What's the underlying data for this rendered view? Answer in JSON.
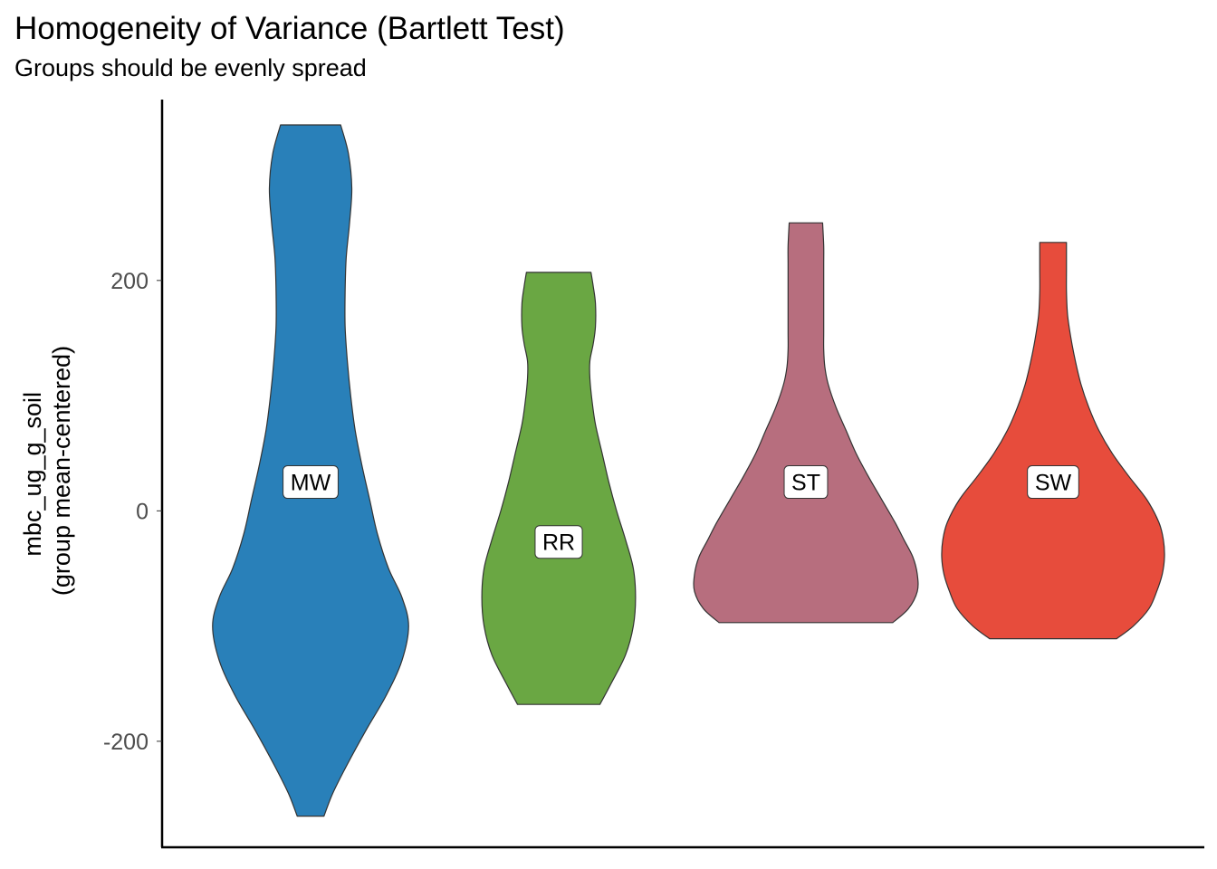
{
  "chart_data": {
    "type": "violin",
    "title": "Homogeneity of Variance (Bartlett Test)",
    "subtitle": "Groups should be evenly spread",
    "xlabel": "",
    "ylabel": [
      "mbc_ug_g_soil",
      "(group mean-centered)"
    ],
    "ylim": [
      -292,
      357
    ],
    "yticks": [
      -200,
      0,
      200
    ],
    "ytick_labels": [
      "-200",
      "0",
      "200"
    ],
    "grid": false,
    "legend": "none",
    "categories": [
      "MW",
      "RR",
      "ST",
      "SW"
    ],
    "groups": [
      {
        "name": "MW",
        "color": "#2980b9",
        "label_y": 25,
        "profile": [
          [
            -265,
            0.12
          ],
          [
            -245,
            0.2
          ],
          [
            -220,
            0.33
          ],
          [
            -190,
            0.5
          ],
          [
            -160,
            0.68
          ],
          [
            -130,
            0.82
          ],
          [
            -100,
            0.88
          ],
          [
            -75,
            0.82
          ],
          [
            -50,
            0.7
          ],
          [
            -20,
            0.6
          ],
          [
            10,
            0.53
          ],
          [
            40,
            0.46
          ],
          [
            70,
            0.4
          ],
          [
            100,
            0.36
          ],
          [
            130,
            0.33
          ],
          [
            160,
            0.31
          ],
          [
            190,
            0.31
          ],
          [
            220,
            0.32
          ],
          [
            250,
            0.35
          ],
          [
            280,
            0.37
          ],
          [
            310,
            0.34
          ],
          [
            335,
            0.27
          ]
        ]
      },
      {
        "name": "RR",
        "color": "#6aa743",
        "label_y": -27,
        "profile": [
          [
            -168,
            0.37
          ],
          [
            -150,
            0.47
          ],
          [
            -125,
            0.6
          ],
          [
            -100,
            0.67
          ],
          [
            -75,
            0.69
          ],
          [
            -50,
            0.67
          ],
          [
            -25,
            0.6
          ],
          [
            0,
            0.52
          ],
          [
            25,
            0.45
          ],
          [
            50,
            0.39
          ],
          [
            75,
            0.33
          ],
          [
            95,
            0.3
          ],
          [
            115,
            0.28
          ],
          [
            130,
            0.28
          ],
          [
            145,
            0.31
          ],
          [
            160,
            0.33
          ],
          [
            180,
            0.33
          ],
          [
            195,
            0.31
          ],
          [
            207,
            0.29
          ]
        ]
      },
      {
        "name": "ST",
        "color": "#b76e7e",
        "label_y": 25,
        "profile": [
          [
            -97,
            0.78
          ],
          [
            -85,
            0.92
          ],
          [
            -70,
            1.0
          ],
          [
            -55,
            1.0
          ],
          [
            -40,
            0.96
          ],
          [
            -25,
            0.88
          ],
          [
            -10,
            0.8
          ],
          [
            10,
            0.68
          ],
          [
            30,
            0.56
          ],
          [
            50,
            0.45
          ],
          [
            70,
            0.36
          ],
          [
            90,
            0.27
          ],
          [
            110,
            0.2
          ],
          [
            125,
            0.17
          ],
          [
            140,
            0.16
          ],
          [
            155,
            0.16
          ],
          [
            170,
            0.16
          ],
          [
            185,
            0.16
          ],
          [
            200,
            0.16
          ],
          [
            215,
            0.16
          ],
          [
            230,
            0.16
          ],
          [
            250,
            0.15
          ]
        ]
      },
      {
        "name": "SW",
        "color": "#e74c3c",
        "label_y": 25,
        "profile": [
          [
            -111,
            0.57
          ],
          [
            -100,
            0.72
          ],
          [
            -85,
            0.86
          ],
          [
            -70,
            0.93
          ],
          [
            -55,
            0.98
          ],
          [
            -40,
            1.0
          ],
          [
            -25,
            0.99
          ],
          [
            -10,
            0.95
          ],
          [
            10,
            0.84
          ],
          [
            30,
            0.68
          ],
          [
            50,
            0.53
          ],
          [
            70,
            0.41
          ],
          [
            90,
            0.32
          ],
          [
            110,
            0.25
          ],
          [
            130,
            0.2
          ],
          [
            150,
            0.16
          ],
          [
            170,
            0.13
          ],
          [
            190,
            0.12
          ],
          [
            210,
            0.12
          ],
          [
            233,
            0.12
          ]
        ]
      }
    ]
  }
}
